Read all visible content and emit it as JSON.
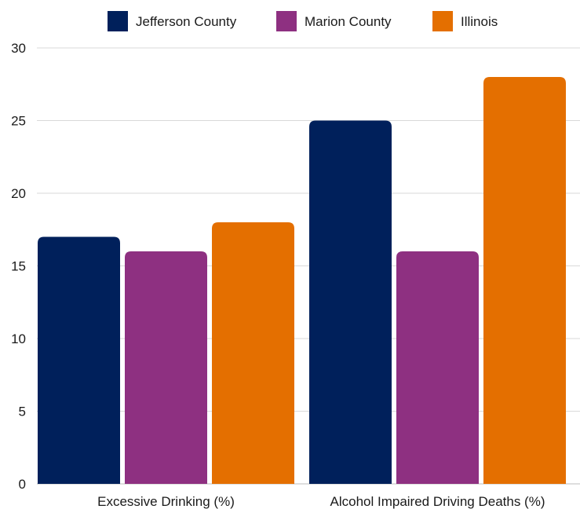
{
  "chart_data": {
    "type": "bar",
    "categories": [
      "Excessive Drinking (%)",
      "Alcohol Impaired Driving Deaths (%)"
    ],
    "series": [
      {
        "name": "Jefferson County",
        "color": "#00205b",
        "values": [
          17,
          25
        ]
      },
      {
        "name": "Marion County",
        "color": "#8e3081",
        "values": [
          16,
          16
        ]
      },
      {
        "name": "Illinois",
        "color": "#e46f00",
        "values": [
          18,
          28
        ]
      }
    ],
    "ylim": [
      0,
      30
    ],
    "yticks": [
      0,
      5,
      10,
      15,
      20,
      25,
      30
    ],
    "grid": true,
    "legend_position": "top",
    "title": "",
    "xlabel": "",
    "ylabel": ""
  }
}
